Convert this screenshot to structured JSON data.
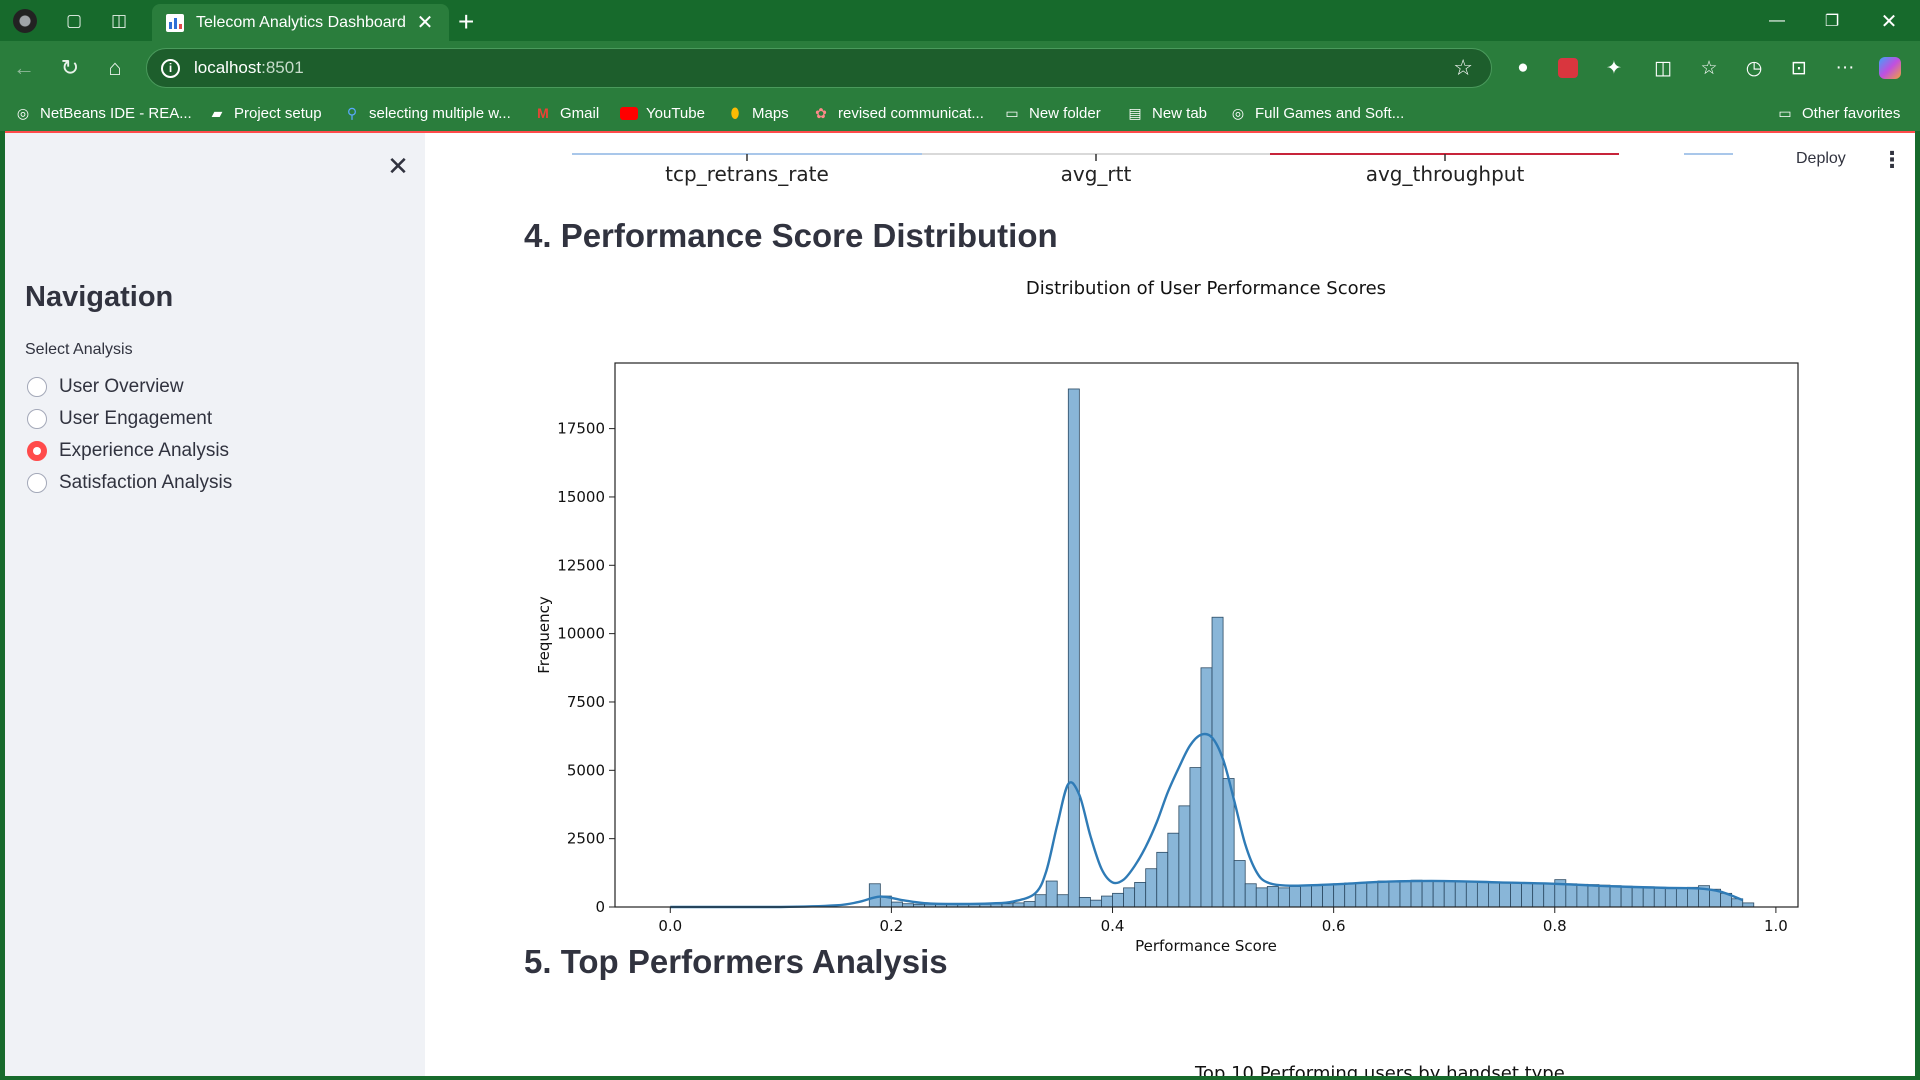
{
  "browser": {
    "tab_title": "Telecom Analytics Dashboard",
    "url_host": "localhost",
    "url_port": ":8501",
    "bookmarks": [
      {
        "label": "NetBeans IDE - REA...",
        "icon": "globe-icon"
      },
      {
        "label": "Project setup",
        "icon": "setup-icon"
      },
      {
        "label": "selecting multiple w...",
        "icon": "search-icon"
      },
      {
        "label": "Gmail",
        "icon": "gmail-icon"
      },
      {
        "label": "YouTube",
        "icon": "youtube-icon"
      },
      {
        "label": "Maps",
        "icon": "maps-icon"
      },
      {
        "label": "revised communicat...",
        "icon": "dots-icon"
      },
      {
        "label": "New folder",
        "icon": "folder-icon"
      },
      {
        "label": "New tab",
        "icon": "newtab-icon"
      },
      {
        "label": "Full Games and Soft...",
        "icon": "globe-icon"
      }
    ],
    "other_favorites": "Other favorites"
  },
  "app": {
    "deploy_label": "Deploy",
    "sidebar": {
      "title": "Navigation",
      "select_label": "Select Analysis",
      "options": [
        {
          "label": "User Overview",
          "checked": false
        },
        {
          "label": "User Engagement",
          "checked": false
        },
        {
          "label": "Experience Analysis",
          "checked": true
        },
        {
          "label": "Satisfaction Analysis",
          "checked": false
        }
      ]
    },
    "prev_chart_labels": [
      "tcp_retrans_rate",
      "avg_rtt",
      "avg_throughput"
    ],
    "section4_title": "4. Performance Score Distribution",
    "section5_title": "5. Top Performers Analysis",
    "next_chart_title": "Top 10 Performing users by handset type"
  },
  "chart_data": {
    "type": "bar",
    "title": "Distribution of User Performance Scores",
    "xlabel": "Performance Score",
    "ylabel": "Frequency",
    "xlim": [
      -0.05,
      1.02
    ],
    "ylim": [
      0,
      19900
    ],
    "xticks": [
      "0.0",
      "0.2",
      "0.4",
      "0.6",
      "0.8",
      "1.0"
    ],
    "yticks": [
      "0",
      "2500",
      "5000",
      "7500",
      "10000",
      "12500",
      "15000",
      "17500"
    ],
    "bar_color": "#89b6d8",
    "kde_color": "#2f7bb6",
    "bins": [
      [
        0.18,
        0.19,
        850
      ],
      [
        0.19,
        0.2,
        400
      ],
      [
        0.2,
        0.21,
        180
      ],
      [
        0.21,
        0.22,
        120
      ],
      [
        0.22,
        0.23,
        100
      ],
      [
        0.23,
        0.24,
        100
      ],
      [
        0.24,
        0.25,
        100
      ],
      [
        0.25,
        0.26,
        100
      ],
      [
        0.26,
        0.27,
        100
      ],
      [
        0.27,
        0.28,
        100
      ],
      [
        0.28,
        0.29,
        100
      ],
      [
        0.29,
        0.3,
        110
      ],
      [
        0.3,
        0.31,
        120
      ],
      [
        0.31,
        0.32,
        150
      ],
      [
        0.32,
        0.33,
        200
      ],
      [
        0.33,
        0.34,
        450
      ],
      [
        0.34,
        0.35,
        950
      ],
      [
        0.35,
        0.36,
        450
      ],
      [
        0.36,
        0.37,
        18950
      ],
      [
        0.37,
        0.38,
        350
      ],
      [
        0.38,
        0.39,
        250
      ],
      [
        0.39,
        0.4,
        400
      ],
      [
        0.4,
        0.41,
        500
      ],
      [
        0.41,
        0.42,
        700
      ],
      [
        0.42,
        0.43,
        900
      ],
      [
        0.43,
        0.44,
        1400
      ],
      [
        0.44,
        0.45,
        2000
      ],
      [
        0.45,
        0.46,
        2700
      ],
      [
        0.46,
        0.47,
        3700
      ],
      [
        0.47,
        0.48,
        5100
      ],
      [
        0.48,
        0.49,
        8750
      ],
      [
        0.49,
        0.5,
        10600
      ],
      [
        0.5,
        0.51,
        4700
      ],
      [
        0.51,
        0.52,
        1700
      ],
      [
        0.52,
        0.53,
        850
      ],
      [
        0.53,
        0.54,
        700
      ],
      [
        0.54,
        0.55,
        750
      ],
      [
        0.55,
        0.56,
        700
      ],
      [
        0.56,
        0.57,
        750
      ],
      [
        0.57,
        0.58,
        800
      ],
      [
        0.58,
        0.59,
        780
      ],
      [
        0.59,
        0.6,
        820
      ],
      [
        0.6,
        0.61,
        850
      ],
      [
        0.61,
        0.62,
        880
      ],
      [
        0.62,
        0.63,
        900
      ],
      [
        0.63,
        0.64,
        920
      ],
      [
        0.64,
        0.65,
        950
      ],
      [
        0.65,
        0.66,
        930
      ],
      [
        0.66,
        0.67,
        960
      ],
      [
        0.67,
        0.68,
        980
      ],
      [
        0.68,
        0.69,
        950
      ],
      [
        0.69,
        0.7,
        940
      ],
      [
        0.7,
        0.71,
        950
      ],
      [
        0.71,
        0.72,
        930
      ],
      [
        0.72,
        0.73,
        920
      ],
      [
        0.73,
        0.74,
        900
      ],
      [
        0.74,
        0.75,
        920
      ],
      [
        0.75,
        0.76,
        900
      ],
      [
        0.76,
        0.77,
        880
      ],
      [
        0.77,
        0.78,
        880
      ],
      [
        0.78,
        0.79,
        870
      ],
      [
        0.79,
        0.8,
        850
      ],
      [
        0.8,
        0.81,
        1000
      ],
      [
        0.81,
        0.82,
        850
      ],
      [
        0.82,
        0.83,
        830
      ],
      [
        0.83,
        0.84,
        820
      ],
      [
        0.84,
        0.85,
        800
      ],
      [
        0.85,
        0.86,
        780
      ],
      [
        0.86,
        0.87,
        760
      ],
      [
        0.87,
        0.88,
        750
      ],
      [
        0.88,
        0.89,
        740
      ],
      [
        0.89,
        0.9,
        720
      ],
      [
        0.9,
        0.91,
        700
      ],
      [
        0.91,
        0.92,
        700
      ],
      [
        0.92,
        0.93,
        720
      ],
      [
        0.93,
        0.94,
        780
      ],
      [
        0.94,
        0.95,
        650
      ],
      [
        0.95,
        0.96,
        500
      ],
      [
        0.96,
        0.97,
        300
      ],
      [
        0.97,
        0.98,
        150
      ]
    ],
    "kde": [
      [
        0.0,
        0
      ],
      [
        0.1,
        0
      ],
      [
        0.15,
        60
      ],
      [
        0.17,
        180
      ],
      [
        0.19,
        380
      ],
      [
        0.21,
        250
      ],
      [
        0.23,
        140
      ],
      [
        0.26,
        110
      ],
      [
        0.29,
        130
      ],
      [
        0.31,
        200
      ],
      [
        0.33,
        500
      ],
      [
        0.34,
        1300
      ],
      [
        0.35,
        3000
      ],
      [
        0.36,
        4500
      ],
      [
        0.37,
        4100
      ],
      [
        0.38,
        2600
      ],
      [
        0.39,
        1400
      ],
      [
        0.4,
        900
      ],
      [
        0.41,
        1000
      ],
      [
        0.42,
        1500
      ],
      [
        0.43,
        2200
      ],
      [
        0.44,
        3100
      ],
      [
        0.45,
        4200
      ],
      [
        0.46,
        5100
      ],
      [
        0.47,
        5900
      ],
      [
        0.48,
        6300
      ],
      [
        0.49,
        6200
      ],
      [
        0.5,
        5400
      ],
      [
        0.51,
        3900
      ],
      [
        0.52,
        2300
      ],
      [
        0.53,
        1300
      ],
      [
        0.54,
        900
      ],
      [
        0.56,
        780
      ],
      [
        0.6,
        830
      ],
      [
        0.65,
        930
      ],
      [
        0.7,
        950
      ],
      [
        0.75,
        900
      ],
      [
        0.8,
        850
      ],
      [
        0.85,
        760
      ],
      [
        0.9,
        700
      ],
      [
        0.93,
        680
      ],
      [
        0.95,
        560
      ],
      [
        0.97,
        250
      ]
    ]
  }
}
